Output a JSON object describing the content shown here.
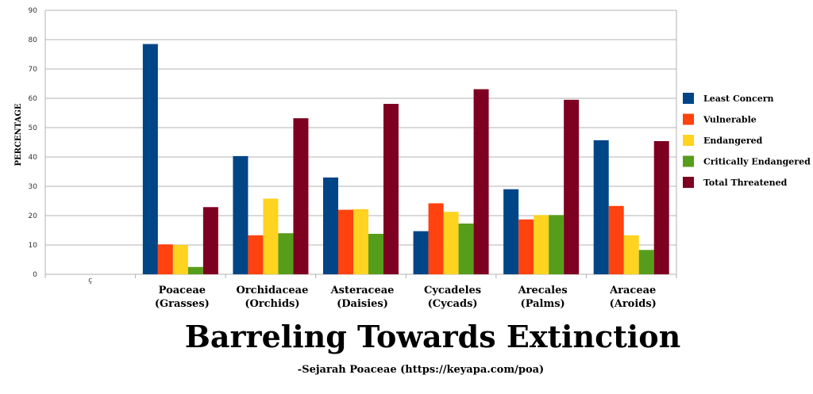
{
  "chart_data": {
    "type": "bar",
    "title": "Barreling Towards Extinction",
    "subtitle": "-Sejarah Poaceae (https://keyapa.com/poa)",
    "ylabel": "PERCENTAGE",
    "xlabel": "",
    "ylim": [
      0,
      90
    ],
    "yticks": [
      0,
      10,
      20,
      30,
      40,
      50,
      60,
      70,
      80,
      90
    ],
    "grid": true,
    "legend_position": "right",
    "empty_category_label": "ç",
    "categories": [
      [
        "Poaceae",
        "(Grasses)"
      ],
      [
        "Orchidaceae",
        "(Orchids)"
      ],
      [
        "Asteraceae",
        "(Daisies)"
      ],
      [
        "Cycadeles",
        "(Cycads)"
      ],
      [
        "Arecales",
        "(Palms)"
      ],
      [
        "Araceae",
        "(Aroids)"
      ]
    ],
    "series": [
      {
        "name": "Least Concern",
        "color": "#004586",
        "values": [
          78.5,
          40.3,
          33,
          14.7,
          29,
          45.7
        ]
      },
      {
        "name": "Vulnerable",
        "color": "#ff420e",
        "values": [
          10.2,
          13.3,
          22,
          24.2,
          18.7,
          23.3
        ]
      },
      {
        "name": "Endangered",
        "color": "#ffd320",
        "values": [
          10,
          25.8,
          22.2,
          21.3,
          20.2,
          13.3
        ]
      },
      {
        "name": "Critically Endangered",
        "color": "#579d1c",
        "values": [
          2.5,
          14,
          13.8,
          17.3,
          20.2,
          8.3
        ]
      },
      {
        "name": "Total Threatened",
        "color": "#7e0021",
        "values": [
          22.9,
          53.2,
          58.1,
          63.1,
          59.5,
          45.4
        ]
      }
    ]
  }
}
